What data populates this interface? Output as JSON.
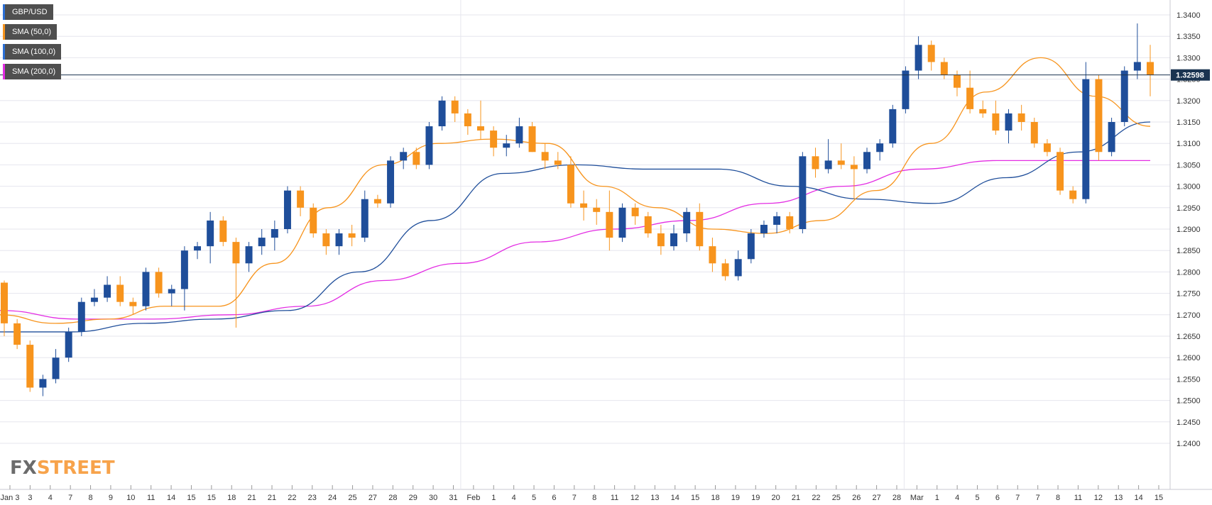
{
  "legend": [
    {
      "label": "GBP/USD",
      "color": "#1f4e9a"
    },
    {
      "label": "SMA (50,0)",
      "color": "#f7941d"
    },
    {
      "label": "SMA (100,0)",
      "color": "#1f4e9a"
    },
    {
      "label": "SMA (200,0)",
      "color": "#e32ce3"
    }
  ],
  "watermark": {
    "fx": "FX",
    "street": "STREET"
  },
  "colors": {
    "up": "#1f4e9a",
    "down": "#f7941d",
    "sma50": "#f7941d",
    "sma100": "#1f4e9a",
    "sma200": "#e32ce3",
    "grid": "#e6e6ee",
    "price_line": "#1a3350"
  },
  "chart_data": {
    "type": "candlestick",
    "title": "",
    "ylim": [
      1.24,
      1.34
    ],
    "grid": true,
    "legend_position": "top-left",
    "y_ticks": [
      "1.3400",
      "1.3350",
      "1.3300",
      "1.3250",
      "1.3200",
      "1.3150",
      "1.3100",
      "1.3050",
      "1.3000",
      "1.2950",
      "1.2900",
      "1.2850",
      "1.2800",
      "1.2750",
      "1.2700",
      "1.2650",
      "1.2600",
      "1.2550",
      "1.2500",
      "1.2450",
      "1.2400"
    ],
    "x_ticks": [
      "Jan 3",
      "3",
      "4",
      "7",
      "8",
      "9",
      "10",
      "11",
      "14",
      "15",
      "15",
      "18",
      "21",
      "21",
      "22",
      "23",
      "24",
      "25",
      "27",
      "28",
      "29",
      "30",
      "31",
      "Feb",
      "1",
      "4",
      "5",
      "6",
      "7",
      "8",
      "11",
      "12",
      "13",
      "14",
      "15",
      "18",
      "19",
      "19",
      "20",
      "21",
      "22",
      "25",
      "26",
      "27",
      "28",
      "Mar",
      "1",
      "4",
      "5",
      "6",
      "7",
      "7",
      "8",
      "11",
      "12",
      "13",
      "14",
      "15"
    ],
    "last_price": "1.32598",
    "last_value": 1.32598,
    "sma50_values": [
      1.27,
      1.268,
      1.269,
      1.272,
      1.272,
      1.282,
      1.295,
      1.305,
      1.31,
      1.311,
      1.31,
      1.3,
      1.295,
      1.29,
      1.289,
      1.292,
      1.299,
      1.31,
      1.322,
      1.33,
      1.321,
      1.314
    ],
    "sma100_values": [
      1.266,
      1.266,
      1.268,
      1.269,
      1.271,
      1.28,
      1.292,
      1.303,
      1.305,
      1.304,
      1.304,
      1.3,
      1.297,
      1.296,
      1.302,
      1.308,
      1.315
    ],
    "sma200_values": [
      1.271,
      1.269,
      1.269,
      1.27,
      1.272,
      1.278,
      1.282,
      1.287,
      1.29,
      1.292,
      1.296,
      1.3,
      1.304,
      1.306,
      1.306,
      1.306
    ],
    "candles": [
      [
        1.2775,
        1.278,
        1.265,
        1.268
      ],
      [
        1.268,
        1.269,
        1.262,
        1.263
      ],
      [
        1.263,
        1.264,
        1.252,
        1.253
      ],
      [
        1.253,
        1.256,
        1.251,
        1.255
      ],
      [
        1.255,
        1.262,
        1.254,
        1.26
      ],
      [
        1.26,
        1.267,
        1.259,
        1.266
      ],
      [
        1.266,
        1.274,
        1.265,
        1.273
      ],
      [
        1.273,
        1.276,
        1.272,
        1.274
      ],
      [
        1.274,
        1.279,
        1.273,
        1.277
      ],
      [
        1.277,
        1.279,
        1.272,
        1.273
      ],
      [
        1.273,
        1.274,
        1.27,
        1.272
      ],
      [
        1.272,
        1.281,
        1.271,
        1.28
      ],
      [
        1.28,
        1.281,
        1.274,
        1.275
      ],
      [
        1.275,
        1.277,
        1.272,
        1.276
      ],
      [
        1.276,
        1.286,
        1.271,
        1.285
      ],
      [
        1.285,
        1.287,
        1.283,
        1.286
      ],
      [
        1.286,
        1.294,
        1.282,
        1.292
      ],
      [
        1.292,
        1.293,
        1.286,
        1.287
      ],
      [
        1.287,
        1.288,
        1.267,
        1.282
      ],
      [
        1.282,
        1.287,
        1.28,
        1.286
      ],
      [
        1.286,
        1.29,
        1.284,
        1.288
      ],
      [
        1.288,
        1.292,
        1.285,
        1.29
      ],
      [
        1.29,
        1.3,
        1.289,
        1.299
      ],
      [
        1.299,
        1.3,
        1.293,
        1.295
      ],
      [
        1.295,
        1.296,
        1.288,
        1.289
      ],
      [
        1.289,
        1.29,
        1.284,
        1.286
      ],
      [
        1.286,
        1.29,
        1.284,
        1.289
      ],
      [
        1.289,
        1.291,
        1.286,
        1.288
      ],
      [
        1.288,
        1.299,
        1.287,
        1.297
      ],
      [
        1.297,
        1.298,
        1.295,
        1.296
      ],
      [
        1.296,
        1.307,
        1.295,
        1.306
      ],
      [
        1.306,
        1.309,
        1.304,
        1.308
      ],
      [
        1.308,
        1.309,
        1.304,
        1.305
      ],
      [
        1.305,
        1.315,
        1.304,
        1.314
      ],
      [
        1.314,
        1.321,
        1.313,
        1.32
      ],
      [
        1.32,
        1.321,
        1.315,
        1.317
      ],
      [
        1.317,
        1.318,
        1.312,
        1.314
      ],
      [
        1.314,
        1.32,
        1.311,
        1.313
      ],
      [
        1.313,
        1.314,
        1.307,
        1.309
      ],
      [
        1.309,
        1.312,
        1.307,
        1.31
      ],
      [
        1.31,
        1.316,
        1.309,
        1.314
      ],
      [
        1.314,
        1.315,
        1.308,
        1.308
      ],
      [
        1.308,
        1.31,
        1.304,
        1.306
      ],
      [
        1.306,
        1.308,
        1.304,
        1.305
      ],
      [
        1.305,
        1.307,
        1.295,
        1.296
      ],
      [
        1.296,
        1.299,
        1.292,
        1.295
      ],
      [
        1.295,
        1.297,
        1.291,
        1.294
      ],
      [
        1.294,
        1.299,
        1.285,
        1.288
      ],
      [
        1.288,
        1.296,
        1.287,
        1.295
      ],
      [
        1.295,
        1.296,
        1.291,
        1.293
      ],
      [
        1.293,
        1.294,
        1.288,
        1.289
      ],
      [
        1.289,
        1.291,
        1.284,
        1.286
      ],
      [
        1.286,
        1.291,
        1.285,
        1.289
      ],
      [
        1.289,
        1.295,
        1.287,
        1.294
      ],
      [
        1.294,
        1.296,
        1.285,
        1.286
      ],
      [
        1.286,
        1.288,
        1.28,
        1.282
      ],
      [
        1.282,
        1.283,
        1.278,
        1.279
      ],
      [
        1.279,
        1.285,
        1.278,
        1.283
      ],
      [
        1.283,
        1.29,
        1.282,
        1.289
      ],
      [
        1.289,
        1.292,
        1.288,
        1.291
      ],
      [
        1.291,
        1.294,
        1.289,
        1.293
      ],
      [
        1.293,
        1.294,
        1.289,
        1.29
      ],
      [
        1.29,
        1.308,
        1.289,
        1.307
      ],
      [
        1.307,
        1.309,
        1.302,
        1.304
      ],
      [
        1.304,
        1.311,
        1.303,
        1.306
      ],
      [
        1.306,
        1.31,
        1.304,
        1.305
      ],
      [
        1.305,
        1.307,
        1.297,
        1.304
      ],
      [
        1.304,
        1.309,
        1.303,
        1.308
      ],
      [
        1.308,
        1.311,
        1.306,
        1.31
      ],
      [
        1.31,
        1.319,
        1.309,
        1.318
      ],
      [
        1.318,
        1.328,
        1.317,
        1.327
      ],
      [
        1.327,
        1.335,
        1.325,
        1.333
      ],
      [
        1.333,
        1.334,
        1.327,
        1.329
      ],
      [
        1.329,
        1.33,
        1.325,
        1.326
      ],
      [
        1.326,
        1.327,
        1.321,
        1.323
      ],
      [
        1.323,
        1.327,
        1.317,
        1.318
      ],
      [
        1.318,
        1.32,
        1.316,
        1.317
      ],
      [
        1.317,
        1.32,
        1.312,
        1.313
      ],
      [
        1.313,
        1.318,
        1.31,
        1.317
      ],
      [
        1.317,
        1.319,
        1.313,
        1.315
      ],
      [
        1.315,
        1.316,
        1.309,
        1.31
      ],
      [
        1.31,
        1.311,
        1.307,
        1.308
      ],
      [
        1.308,
        1.309,
        1.298,
        1.299
      ],
      [
        1.299,
        1.3,
        1.296,
        1.297
      ],
      [
        1.297,
        1.329,
        1.296,
        1.325
      ],
      [
        1.325,
        1.326,
        1.306,
        1.308
      ],
      [
        1.308,
        1.316,
        1.307,
        1.315
      ],
      [
        1.315,
        1.328,
        1.314,
        1.327
      ],
      [
        1.327,
        1.338,
        1.325,
        1.329
      ],
      [
        1.329,
        1.333,
        1.321,
        1.326
      ]
    ]
  }
}
